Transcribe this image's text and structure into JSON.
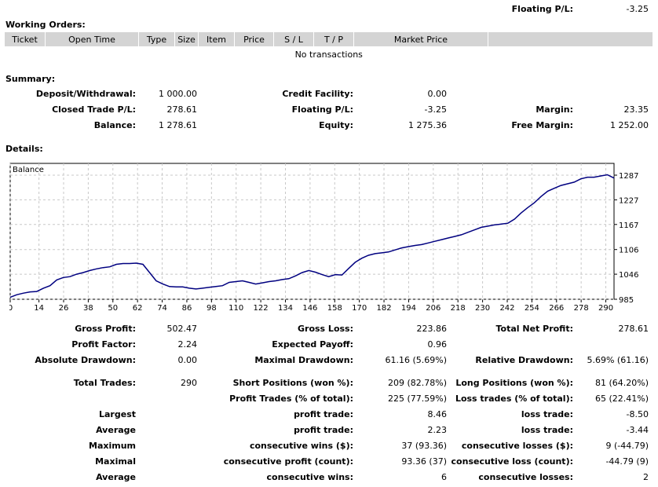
{
  "floating_top": {
    "label": "Floating P/L:",
    "value": "-3.25"
  },
  "working_orders": {
    "title": "Working Orders:",
    "columns": [
      "Ticket",
      "Open Time",
      "Type",
      "Size",
      "Item",
      "Price",
      "S / L",
      "T / P",
      "Market Price",
      ""
    ],
    "empty_text": "No transactions"
  },
  "summary": {
    "title": "Summary:",
    "rows": [
      [
        "Deposit/Withdrawal:",
        "1 000.00",
        "Credit Facility:",
        "0.00",
        "",
        ""
      ],
      [
        "Closed Trade P/L:",
        "278.61",
        "Floating P/L:",
        "-3.25",
        "Margin:",
        "23.35"
      ],
      [
        "Balance:",
        "1 278.61",
        "Equity:",
        "1 275.36",
        "Free Margin:",
        "1 252.00"
      ]
    ]
  },
  "details": {
    "title": "Details:"
  },
  "chart_data": {
    "type": "line",
    "title": "Balance",
    "series": [
      {
        "name": "Balance",
        "values": [
          990,
          996,
          1000,
          1003,
          1004,
          1012,
          1018,
          1032,
          1038,
          1040,
          1046,
          1050,
          1055,
          1059,
          1062,
          1064,
          1070,
          1072,
          1072,
          1073,
          1070,
          1050,
          1030,
          1022,
          1016,
          1015,
          1015,
          1012,
          1010,
          1012,
          1014,
          1016,
          1018,
          1026,
          1028,
          1030,
          1026,
          1022,
          1025,
          1028,
          1030,
          1033,
          1035,
          1042,
          1050,
          1055,
          1051,
          1045,
          1040,
          1045,
          1044,
          1060,
          1075,
          1085,
          1092,
          1096,
          1098,
          1100,
          1105,
          1110,
          1113,
          1116,
          1118,
          1122,
          1126,
          1130,
          1134,
          1138,
          1142,
          1148,
          1154,
          1160,
          1163,
          1166,
          1168,
          1170,
          1180,
          1195,
          1208,
          1220,
          1235,
          1248,
          1255,
          1262,
          1266,
          1270,
          1278,
          1282,
          1282,
          1285,
          1288,
          1280
        ]
      }
    ],
    "x_ticks": [
      0,
      14,
      26,
      38,
      50,
      62,
      74,
      86,
      98,
      110,
      122,
      134,
      146,
      158,
      170,
      182,
      194,
      206,
      218,
      230,
      242,
      254,
      266,
      278,
      290
    ],
    "y_ticks": [
      985,
      1046,
      1106,
      1167,
      1227,
      1287
    ],
    "xlim": [
      0,
      294
    ],
    "ylim": [
      985,
      1287
    ],
    "grid": true
  },
  "stats": {
    "row1": [
      [
        "Gross Profit:",
        "502.47",
        "Gross Loss:",
        "223.86",
        "Total Net Profit:",
        "278.61"
      ],
      [
        "Profit Factor:",
        "2.24",
        "Expected Payoff:",
        "0.96",
        "",
        ""
      ],
      [
        "Absolute Drawdown:",
        "0.00",
        "Maximal Drawdown:",
        "61.16 (5.69%)",
        "Relative Drawdown:",
        "5.69% (61.16)"
      ]
    ],
    "row2": [
      [
        "Total Trades:",
        "290",
        "Short Positions (won %):",
        "209 (82.78%)",
        "Long Positions (won %):",
        "81 (64.20%)"
      ],
      [
        "",
        "",
        "Profit Trades (% of total):",
        "225 (77.59%)",
        "Loss trades (% of total):",
        "65 (22.41%)"
      ],
      [
        "Largest",
        "",
        "profit trade:",
        "8.46",
        "loss trade:",
        "-8.50"
      ],
      [
        "Average",
        "",
        "profit trade:",
        "2.23",
        "loss trade:",
        "-3.44"
      ],
      [
        "Maximum",
        "",
        "consecutive wins ($):",
        "37 (93.36)",
        "consecutive losses ($):",
        "9 (-44.79)"
      ],
      [
        "Maximal",
        "",
        "consecutive profit (count):",
        "93.36 (37)",
        "consecutive loss (count):",
        "-44.79 (9)"
      ],
      [
        "Average",
        "",
        "consecutive wins:",
        "6",
        "consecutive losses:",
        "2"
      ]
    ]
  }
}
